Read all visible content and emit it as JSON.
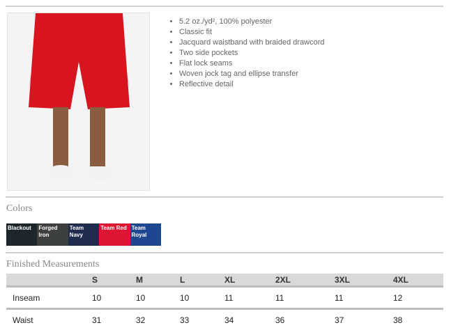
{
  "features": [
    "5.2 oz./yd², 100% polyester",
    "Classic fit",
    "Jacquard waistband with braided drawcord",
    "Two side pockets",
    "Flat lock seams",
    "Woven jock tag and ellipse transfer",
    "Reflective detail"
  ],
  "colors_title": "Colors",
  "colors": [
    {
      "name": "Blackout",
      "hex": "#1d262b"
    },
    {
      "name": "Forged Iron",
      "hex": "#3c4140"
    },
    {
      "name": "Team Navy",
      "hex": "#1f2c4d"
    },
    {
      "name": "Team Red",
      "hex": "#dc1531"
    },
    {
      "name": "Team Royal",
      "hex": "#1f4690"
    }
  ],
  "measurements": {
    "title": "Finished Measurements",
    "sizes": [
      "S",
      "M",
      "L",
      "XL",
      "2XL",
      "3XL",
      "4XL"
    ],
    "rows": [
      {
        "label": "Inseam",
        "values": [
          "10",
          "10",
          "10",
          "11",
          "11",
          "11",
          "12"
        ]
      },
      {
        "label": "Waist",
        "values": [
          "31",
          "32",
          "33",
          "34",
          "36",
          "37",
          "38"
        ]
      }
    ]
  }
}
